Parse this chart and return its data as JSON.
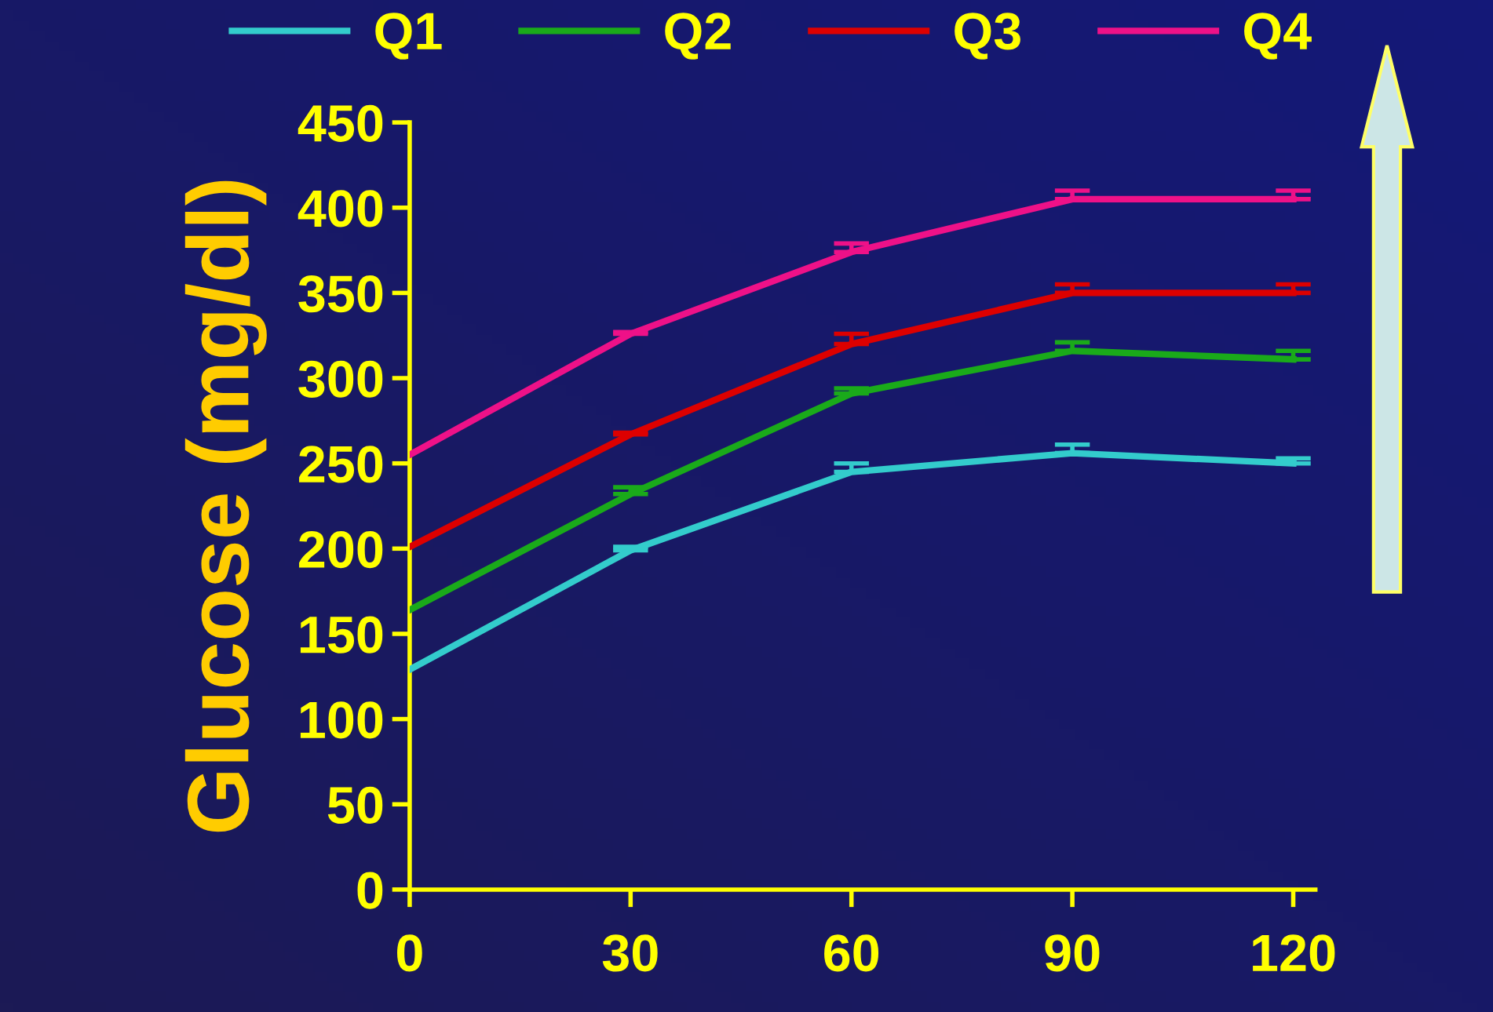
{
  "chart_data": {
    "type": "line",
    "ylabel": "Glucose (mg/dl)",
    "x": [
      0,
      30,
      60,
      90,
      120
    ],
    "series": [
      {
        "name": "Q1",
        "color": "#33cccc",
        "values": [
          129,
          199,
          245,
          256,
          250
        ],
        "errors": [
          null,
          [
            199,
            201
          ],
          [
            245,
            250
          ],
          [
            256,
            261
          ],
          [
            250,
            253
          ]
        ]
      },
      {
        "name": "Q2",
        "color": "#1aaa1a",
        "values": [
          164,
          232,
          291,
          316,
          311
        ],
        "errors": [
          null,
          [
            232,
            236
          ],
          [
            291,
            294
          ],
          [
            316,
            321
          ],
          [
            311,
            316
          ]
        ]
      },
      {
        "name": "Q3",
        "color": "#dd0000",
        "values": [
          201,
          267,
          320,
          350,
          350
        ],
        "errors": [
          null,
          [
            267,
            268
          ],
          [
            320,
            326
          ],
          [
            350,
            355
          ],
          [
            350,
            355
          ]
        ]
      },
      {
        "name": "Q4",
        "color": "#ee1188",
        "values": [
          255,
          326,
          374,
          405,
          405
        ],
        "errors": [
          null,
          [
            326,
            327
          ],
          [
            374,
            379
          ],
          [
            405,
            410
          ],
          [
            405,
            410
          ]
        ]
      }
    ],
    "xlim": [
      0,
      123
    ],
    "xticks": [
      0,
      30,
      60,
      90,
      120
    ],
    "ylim": [
      0,
      450
    ],
    "yticks": [
      0,
      50,
      100,
      150,
      200,
      250,
      300,
      350,
      400,
      450
    ],
    "grid": false,
    "legend": "top",
    "marker": "none",
    "line_style": "solid"
  }
}
